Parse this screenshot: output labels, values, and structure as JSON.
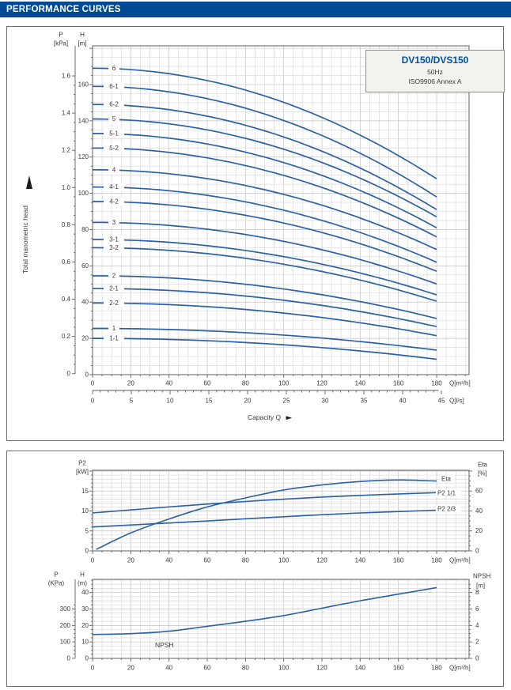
{
  "header": {
    "title": "PERFORMANCE CURVES"
  },
  "info_box": {
    "model": "DV150/DVS150",
    "frequency": "50Hz",
    "standard": "ISO9906 Annex A"
  },
  "labels": {
    "capacity": "Capacity Q",
    "total_head": "Total manometric head"
  },
  "colors": {
    "header_bg": "#004a95",
    "header_text": "#ffffff",
    "curve": "#2b61a4",
    "accent": "#0052a0",
    "grid_minor": "#dadada",
    "grid_major": "#c3c3c3",
    "frame": "#5f5f5f",
    "text": "#3a3a3a",
    "panel_border": "#6e6e6e",
    "infobox_bg": "#f2f2ef"
  },
  "chart_data": [
    {
      "id": "head_curves",
      "type": "line",
      "title": "DV150/DVS150 50Hz head curves",
      "ylabel": "Total manometric head",
      "xlabel": "Capacity Q",
      "q_max": 180,
      "profile": "quadratic: H(Q) = h_start - (h_start-h_end)*(Q/q_max)^2",
      "p_axis": {
        "label": "P",
        "unit": "[kPa]",
        "ticks": [
          0,
          0.2,
          0.4,
          0.6,
          0.8,
          1.0,
          1.2,
          1.4,
          1.6
        ],
        "tick_labels": [
          "0",
          "0.2",
          "0.4",
          "0.6",
          "0.8",
          "1.0",
          "1.2",
          "1.4",
          "1.6"
        ]
      },
      "h_axis": {
        "label": "H",
        "unit": "[m]",
        "ticks": [
          0,
          20,
          40,
          60,
          80,
          100,
          120,
          140,
          160
        ]
      },
      "x_axis_m3h": {
        "unit": "Q[m³/h]",
        "ticks": [
          0,
          20,
          40,
          60,
          80,
          100,
          120,
          140,
          160,
          180
        ]
      },
      "x_axis_ls": {
        "unit": "Q[l/s]",
        "ticks": [
          0,
          5,
          10,
          15,
          20,
          25,
          30,
          35,
          40,
          45
        ]
      },
      "series": [
        {
          "label": "6",
          "h_start": 169,
          "h_end": 108
        },
        {
          "label": "6-1",
          "h_start": 159,
          "h_end": 98
        },
        {
          "label": "6-2",
          "h_start": 149,
          "h_end": 91
        },
        {
          "label": "5",
          "h_start": 141,
          "h_end": 87
        },
        {
          "label": "5-1",
          "h_start": 133,
          "h_end": 81
        },
        {
          "label": "5-2",
          "h_start": 125,
          "h_end": 76
        },
        {
          "label": "4",
          "h_start": 113,
          "h_end": 69
        },
        {
          "label": "4-1",
          "h_start": 103.5,
          "h_end": 62
        },
        {
          "label": "4-2",
          "h_start": 95.5,
          "h_end": 57
        },
        {
          "label": "3",
          "h_start": 84,
          "h_end": 50
        },
        {
          "label": "3-1",
          "h_start": 74.5,
          "h_end": 44
        },
        {
          "label": "3-2",
          "h_start": 70,
          "h_end": 40.5
        },
        {
          "label": "2",
          "h_start": 54.5,
          "h_end": 31
        },
        {
          "label": "2-1",
          "h_start": 47.5,
          "h_end": 26.5
        },
        {
          "label": "2-2",
          "h_start": 39.5,
          "h_end": 21.5
        },
        {
          "label": "1",
          "h_start": 25.5,
          "h_end": 13.5
        },
        {
          "label": "1-1",
          "h_start": 20,
          "h_end": 8.5
        }
      ]
    },
    {
      "id": "power_eta",
      "type": "line",
      "p2_axis": {
        "label": "P2",
        "unit": "[kW]",
        "ticks": [
          0,
          5,
          10,
          15
        ]
      },
      "eta_axis": {
        "label": "Eta",
        "unit": "[%]",
        "ticks": [
          0,
          20,
          40,
          60
        ]
      },
      "x_axis": {
        "unit": "Q[m³/h]",
        "ticks": [
          0,
          20,
          40,
          60,
          80,
          100,
          120,
          140,
          160,
          180
        ]
      },
      "series": [
        {
          "label": "Eta",
          "axis": "eta",
          "points": [
            [
              2,
              1.5
            ],
            [
              20,
              18
            ],
            [
              40,
              32
            ],
            [
              60,
              44
            ],
            [
              80,
              53
            ],
            [
              100,
              61
            ],
            [
              120,
              66
            ],
            [
              140,
              69.5
            ],
            [
              160,
              71
            ],
            [
              180,
              70
            ]
          ]
        },
        {
          "label": "P2 1/1",
          "axis": "p2",
          "points": [
            [
              0,
              9.5
            ],
            [
              45,
              11.2
            ],
            [
              90,
              12.7
            ],
            [
              135,
              13.8
            ],
            [
              180,
              14.6
            ]
          ]
        },
        {
          "label": "P2 2/3",
          "axis": "p2",
          "points": [
            [
              0,
              6.0
            ],
            [
              45,
              7.1
            ],
            [
              90,
              8.3
            ],
            [
              135,
              9.4
            ],
            [
              180,
              10.2
            ]
          ]
        }
      ]
    },
    {
      "id": "npsh",
      "type": "line",
      "p_axis": {
        "label": "P",
        "unit": "(KPa)",
        "ticks": [
          0,
          100,
          200,
          300
        ]
      },
      "h_axis": {
        "label": "H",
        "unit": "(m)",
        "ticks": [
          0,
          10,
          20,
          30,
          40
        ]
      },
      "npsh_axis": {
        "label": "NPSH",
        "unit": "[m]",
        "ticks": [
          0,
          2,
          4,
          6,
          8
        ]
      },
      "x_axis": {
        "unit": "Q[m³/h]",
        "ticks": [
          0,
          20,
          40,
          60,
          80,
          100,
          120,
          140,
          160,
          180
        ]
      },
      "inplot_label": "NPSH",
      "series": [
        {
          "label": "NPSH",
          "unit": "m",
          "points": [
            [
              0,
              2.9
            ],
            [
              20,
              3.0
            ],
            [
              40,
              3.3
            ],
            [
              60,
              3.9
            ],
            [
              80,
              4.5
            ],
            [
              100,
              5.2
            ],
            [
              120,
              6.1
            ],
            [
              140,
              7.0
            ],
            [
              160,
              7.8
            ],
            [
              180,
              8.6
            ]
          ]
        }
      ]
    }
  ]
}
